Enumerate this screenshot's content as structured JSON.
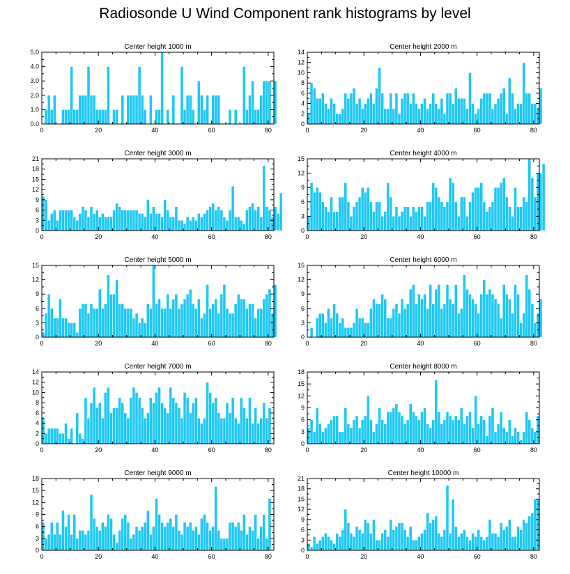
{
  "title": "Radiosonde U Wind Component rank histograms by level",
  "colors": {
    "bar": "#1ec8f5",
    "bar_edge": "#ffffff",
    "axis": "#000000"
  },
  "chart_data": [
    {
      "type": "bar",
      "title": "Center height 1000 m",
      "xlim": [
        0,
        82
      ],
      "ylim": [
        0,
        5
      ],
      "xticks": [
        0,
        20,
        40,
        60,
        80
      ],
      "yticks": [
        0,
        1,
        2,
        3,
        4,
        5
      ],
      "ytick_labels": [
        "0.0",
        "1.0",
        "2.0",
        "3.0",
        "4.0",
        "5.0"
      ],
      "values": [
        0,
        1,
        2,
        1,
        2,
        0,
        0,
        1,
        1,
        1,
        4,
        1,
        1,
        2,
        2,
        2,
        4,
        2,
        2,
        1,
        1,
        1,
        1,
        4,
        0,
        1,
        1,
        0,
        2,
        0,
        2,
        2,
        2,
        2,
        4,
        2,
        1,
        0,
        2,
        0,
        1,
        1,
        5,
        0,
        1,
        0,
        2,
        0,
        0,
        4,
        1,
        2,
        2,
        1,
        0,
        3,
        2,
        1,
        2,
        0,
        2,
        2,
        2,
        0,
        0,
        0,
        1,
        0,
        1,
        0,
        0,
        4,
        1,
        2,
        3,
        1,
        1,
        2,
        3,
        3,
        3,
        0,
        3
      ]
    },
    {
      "type": "bar",
      "title": "Center height 2000 m",
      "xlim": [
        0,
        82
      ],
      "ylim": [
        0,
        14
      ],
      "xticks": [
        0,
        20,
        40,
        60,
        80
      ],
      "yticks": [
        0,
        2,
        4,
        6,
        8,
        10,
        12,
        14
      ],
      "ytick_labels": [
        "0",
        "2",
        "4",
        "6",
        "8",
        "10",
        "12",
        "14"
      ],
      "values": [
        2,
        8,
        7,
        5,
        5,
        6,
        4,
        3,
        5,
        4,
        2,
        2,
        3,
        6,
        5,
        6,
        7,
        4,
        5,
        3,
        4,
        5,
        6,
        4,
        7,
        11,
        6,
        3,
        3,
        6,
        3,
        6,
        2,
        5,
        6,
        6,
        4,
        6,
        4,
        3,
        4,
        5,
        3,
        4,
        6,
        4,
        3,
        5,
        2,
        6,
        6,
        4,
        7,
        5,
        5,
        5,
        3,
        10,
        4,
        2,
        3,
        5,
        6,
        6,
        6,
        3,
        4,
        5,
        6,
        7,
        2,
        9,
        6,
        3,
        4,
        4,
        12,
        6,
        6,
        4,
        4,
        3,
        7
      ]
    },
    {
      "type": "bar",
      "title": "Center height 3000 m",
      "xlim": [
        0,
        82
      ],
      "ylim": [
        0,
        21
      ],
      "xticks": [
        0,
        20,
        40,
        60,
        80
      ],
      "yticks": [
        0,
        3,
        6,
        9,
        12,
        15,
        18,
        21
      ],
      "ytick_labels": [
        "0",
        "3",
        "6",
        "9",
        "12",
        "15",
        "18",
        "21"
      ],
      "values": [
        10,
        9,
        3,
        5,
        6,
        3,
        6,
        6,
        6,
        6,
        6,
        4,
        3,
        5,
        7,
        6,
        4,
        7,
        5,
        6,
        4,
        5,
        4,
        4,
        4,
        6,
        8,
        7,
        6,
        6,
        6,
        6,
        6,
        6,
        5,
        5,
        4,
        9,
        5,
        7,
        5,
        5,
        4,
        9,
        6,
        4,
        4,
        7,
        3,
        3,
        2,
        4,
        3,
        4,
        3,
        5,
        4,
        5,
        6,
        7,
        8,
        6,
        7,
        6,
        4,
        3,
        6,
        13,
        4,
        4,
        3,
        2,
        6,
        7,
        8,
        6,
        7,
        4,
        19,
        7,
        6,
        4,
        7,
        5,
        11
      ]
    },
    {
      "type": "bar",
      "title": "Center height 4000 m",
      "xlim": [
        0,
        82
      ],
      "ylim": [
        0,
        15
      ],
      "xticks": [
        0,
        20,
        40,
        60,
        80
      ],
      "yticks": [
        0,
        3,
        6,
        9,
        12,
        15
      ],
      "ytick_labels": [
        "0",
        "3",
        "6",
        "9",
        "12",
        "15"
      ],
      "values": [
        3,
        10,
        8,
        9,
        8,
        6,
        5,
        4,
        7,
        4,
        4,
        7,
        7,
        10,
        6,
        3,
        5,
        6,
        7,
        9,
        8,
        9,
        6,
        4,
        6,
        6,
        3,
        4,
        10,
        7,
        3,
        5,
        3,
        4,
        5,
        5,
        3,
        5,
        4,
        5,
        5,
        3,
        6,
        6,
        10,
        9,
        7,
        6,
        5,
        6,
        11,
        10,
        6,
        3,
        7,
        7,
        3,
        6,
        8,
        9,
        9,
        10,
        6,
        4,
        5,
        6,
        9,
        9,
        10,
        11,
        7,
        5,
        3,
        9,
        5,
        5,
        7,
        6,
        15,
        11,
        7,
        12,
        12,
        14
      ]
    },
    {
      "type": "bar",
      "title": "Center height 5000 m",
      "xlim": [
        0,
        82
      ],
      "ylim": [
        0,
        15
      ],
      "xticks": [
        0,
        20,
        40,
        60,
        80
      ],
      "yticks": [
        0,
        3,
        6,
        9,
        12,
        15
      ],
      "ytick_labels": [
        "0",
        "3",
        "6",
        "9",
        "12",
        "15"
      ],
      "values": [
        1,
        5,
        9,
        6,
        4,
        4,
        8,
        4,
        4,
        3,
        3,
        3,
        1,
        6,
        7,
        7,
        5,
        7,
        6,
        6,
        10,
        6,
        7,
        13,
        9,
        9,
        12,
        7,
        7,
        6,
        6,
        6,
        4,
        5,
        3,
        4,
        3,
        7,
        6,
        15,
        7,
        8,
        6,
        6,
        9,
        6,
        8,
        9,
        6,
        7,
        8,
        9,
        10,
        7,
        6,
        8,
        4,
        5,
        11,
        6,
        7,
        8,
        5,
        9,
        11,
        6,
        5,
        5,
        7,
        9,
        8,
        8,
        6,
        7,
        7,
        4,
        6,
        6,
        8,
        9,
        10,
        5,
        11
      ]
    },
    {
      "type": "bar",
      "title": "Center height 6000 m",
      "xlim": [
        0,
        82
      ],
      "ylim": [
        0,
        15
      ],
      "xticks": [
        0,
        20,
        40,
        60,
        80
      ],
      "yticks": [
        0,
        3,
        6,
        9,
        12,
        15
      ],
      "ytick_labels": [
        "0",
        "3",
        "6",
        "9",
        "12",
        "15"
      ],
      "values": [
        0,
        2,
        0,
        4,
        5,
        5,
        3,
        6,
        4,
        7,
        5,
        3,
        4,
        2,
        2,
        2,
        3,
        6,
        4,
        4,
        3,
        3,
        6,
        8,
        7,
        7,
        9,
        8,
        4,
        4,
        6,
        7,
        5,
        8,
        6,
        7,
        10,
        11,
        7,
        9,
        8,
        9,
        6,
        11,
        7,
        10,
        11,
        6,
        7,
        11,
        8,
        7,
        11,
        5,
        6,
        13,
        10,
        9,
        8,
        7,
        5,
        9,
        12,
        9,
        10,
        9,
        8,
        7,
        4,
        11,
        9,
        8,
        5,
        11,
        9,
        3,
        5,
        13,
        10,
        7,
        3,
        5,
        8
      ]
    },
    {
      "type": "bar",
      "title": "Center height 7000 m",
      "xlim": [
        0,
        82
      ],
      "ylim": [
        0,
        14
      ],
      "xticks": [
        0,
        20,
        40,
        60,
        80
      ],
      "yticks": [
        0,
        2,
        4,
        6,
        8,
        10,
        12,
        14
      ],
      "ytick_labels": [
        "0",
        "2",
        "4",
        "6",
        "8",
        "10",
        "12",
        "14"
      ],
      "values": [
        5,
        2,
        3,
        3,
        3,
        3,
        2,
        2,
        4,
        1,
        3,
        0,
        6,
        2,
        1,
        9,
        5,
        8,
        11,
        7,
        8,
        5,
        10,
        11,
        6,
        7,
        7,
        9,
        8,
        6,
        5,
        9,
        11,
        10,
        9,
        7,
        5,
        6,
        9,
        8,
        10,
        11,
        8,
        7,
        6,
        11,
        9,
        8,
        7,
        5,
        10,
        9,
        6,
        8,
        9,
        5,
        4,
        5,
        12,
        10,
        8,
        9,
        6,
        5,
        5,
        8,
        6,
        9,
        5,
        4,
        9,
        7,
        5,
        9,
        4,
        7,
        4,
        5,
        8,
        5,
        7
      ]
    },
    {
      "type": "bar",
      "title": "Center height 8000 m",
      "xlim": [
        0,
        82
      ],
      "ylim": [
        0,
        18
      ],
      "xticks": [
        0,
        20,
        40,
        60,
        80
      ],
      "yticks": [
        0,
        3,
        6,
        9,
        12,
        15,
        18
      ],
      "ytick_labels": [
        "0",
        "3",
        "6",
        "9",
        "12",
        "15",
        "18"
      ],
      "values": [
        4,
        6,
        3,
        9,
        5,
        3,
        4,
        5,
        6,
        7,
        7,
        3,
        3,
        9,
        5,
        4,
        6,
        7,
        4,
        6,
        7,
        12,
        6,
        3,
        5,
        9,
        6,
        5,
        8,
        8,
        9,
        10,
        8,
        7,
        5,
        6,
        10,
        8,
        7,
        6,
        8,
        9,
        5,
        4,
        6,
        16,
        8,
        5,
        6,
        8,
        7,
        6,
        7,
        6,
        9,
        5,
        7,
        8,
        4,
        12,
        5,
        7,
        6,
        2,
        7,
        9,
        3,
        5,
        8,
        4,
        3,
        6,
        2,
        4,
        3,
        1,
        3,
        8,
        6,
        4,
        3,
        7
      ]
    },
    {
      "type": "bar",
      "title": "Center height 9000 m",
      "xlim": [
        0,
        82
      ],
      "ylim": [
        0,
        18
      ],
      "xticks": [
        0,
        20,
        40,
        60,
        80
      ],
      "yticks": [
        0,
        3,
        6,
        9,
        12,
        15,
        18
      ],
      "ytick_labels": [
        "0",
        "3",
        "6",
        "9",
        "12",
        "15",
        "18"
      ],
      "values": [
        7,
        3,
        4,
        7,
        4,
        7,
        4,
        10,
        6,
        9,
        4,
        9,
        3,
        5,
        5,
        4,
        5,
        14,
        8,
        6,
        5,
        7,
        6,
        9,
        8,
        4,
        2,
        5,
        8,
        9,
        7,
        3,
        4,
        6,
        5,
        6,
        7,
        10,
        4,
        6,
        13,
        9,
        7,
        6,
        7,
        8,
        6,
        9,
        5,
        4,
        7,
        6,
        7,
        5,
        6,
        4,
        8,
        9,
        7,
        5,
        6,
        16,
        5,
        3,
        3,
        3,
        7,
        7,
        6,
        7,
        5,
        9,
        4,
        6,
        5,
        9,
        3,
        6,
        9,
        3,
        13
      ]
    },
    {
      "type": "bar",
      "title": "Center height 10000 m",
      "xlim": [
        0,
        82
      ],
      "ylim": [
        0,
        21
      ],
      "xticks": [
        0,
        20,
        40,
        60,
        80
      ],
      "yticks": [
        0,
        3,
        6,
        9,
        12,
        15,
        18,
        21
      ],
      "ytick_labels": [
        "0",
        "3",
        "6",
        "9",
        "12",
        "15",
        "18",
        "21"
      ],
      "values": [
        2,
        1,
        4,
        2,
        3,
        4,
        5,
        4,
        3,
        2,
        5,
        4,
        6,
        12,
        8,
        5,
        4,
        7,
        6,
        5,
        9,
        8,
        5,
        9,
        3,
        3,
        5,
        6,
        4,
        9,
        6,
        7,
        8,
        8,
        6,
        4,
        7,
        3,
        3,
        4,
        5,
        6,
        11,
        8,
        9,
        10,
        5,
        4,
        6,
        19,
        5,
        15,
        7,
        4,
        5,
        6,
        4,
        3,
        5,
        4,
        6,
        4,
        3,
        4,
        9,
        5,
        5,
        4,
        8,
        6,
        7,
        9,
        4,
        4,
        7,
        6,
        9,
        8,
        10,
        11,
        15,
        15
      ]
    }
  ]
}
